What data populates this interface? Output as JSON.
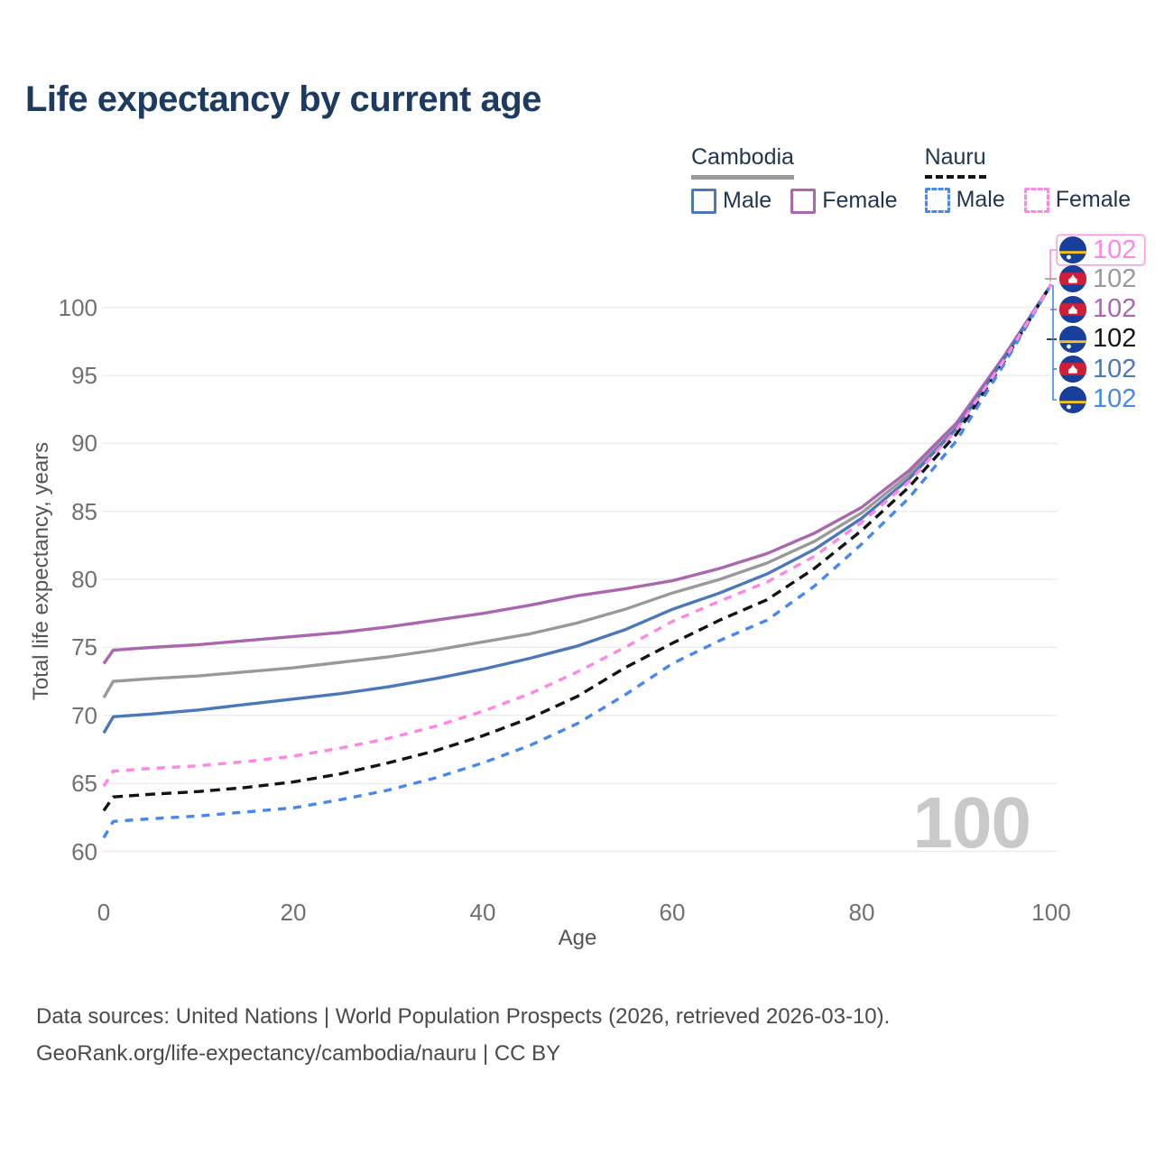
{
  "title": "Life expectancy by current age",
  "watermark": "100",
  "colors": {
    "title": "#1d3b60",
    "legend_text": "#1f3550",
    "axis_text": "#707070",
    "axis_title": "#555555",
    "grid": "#ececec",
    "watermark": "#c9c9c9",
    "footer": "#4a4a4a",
    "cambodia_male": "#4a78b8",
    "cambodia_female": "#aa66ae",
    "cambodia_all": "#999999",
    "nauru_male": "#4488f0",
    "nauru_female": "#ff85e6",
    "nauru_all": "#141414"
  },
  "legend": {
    "groups": [
      {
        "name": "Cambodia",
        "line_style": "solid",
        "items": [
          {
            "label": "Male"
          },
          {
            "label": "Female"
          }
        ]
      },
      {
        "name": "Nauru",
        "line_style": "dashed",
        "items": [
          {
            "label": "Male"
          },
          {
            "label": "Female"
          }
        ]
      }
    ]
  },
  "chart_data": {
    "type": "line",
    "title": "Life expectancy by current age",
    "xlabel": "Age",
    "ylabel": "Total life expectancy, years",
    "x_ticks": [
      0,
      20,
      40,
      60,
      80,
      100
    ],
    "y_ticks": [
      60,
      65,
      70,
      75,
      80,
      85,
      90,
      95,
      100
    ],
    "xlim": [
      0,
      100
    ],
    "ylim": [
      60,
      103
    ],
    "grid": "horizontal",
    "legend_position": "top-right",
    "x": [
      0,
      1,
      5,
      10,
      15,
      20,
      25,
      30,
      35,
      40,
      45,
      50,
      55,
      60,
      65,
      70,
      75,
      80,
      85,
      90,
      95,
      100
    ],
    "series": [
      {
        "id": "cambodia-all",
        "name": "Cambodia",
        "country": "Cambodia",
        "sex": "Both",
        "color_key": "cambodia_all",
        "dashed": false,
        "end_label": "102",
        "values": [
          71.3,
          72.5,
          72.7,
          72.9,
          73.2,
          73.5,
          73.9,
          74.3,
          74.8,
          75.4,
          76.0,
          76.8,
          77.8,
          79.0,
          80.0,
          81.2,
          82.8,
          84.9,
          87.7,
          91.3,
          96.3,
          101.7
        ]
      },
      {
        "id": "cambodia-female",
        "name": "Cambodia Female",
        "country": "Cambodia",
        "sex": "Female",
        "color_key": "cambodia_female",
        "dashed": false,
        "end_label": "102",
        "values": [
          73.8,
          74.8,
          75.0,
          75.2,
          75.5,
          75.8,
          76.1,
          76.5,
          77.0,
          77.5,
          78.1,
          78.8,
          79.3,
          79.9,
          80.8,
          81.9,
          83.4,
          85.3,
          88.0,
          91.5,
          96.4,
          101.7
        ]
      },
      {
        "id": "cambodia-male",
        "name": "Cambodia Male",
        "country": "Cambodia",
        "sex": "Male",
        "color_key": "cambodia_male",
        "dashed": false,
        "end_label": "102",
        "values": [
          68.7,
          69.9,
          70.1,
          70.4,
          70.8,
          71.2,
          71.6,
          72.1,
          72.7,
          73.4,
          74.2,
          75.1,
          76.3,
          77.8,
          79.0,
          80.4,
          82.2,
          84.5,
          87.4,
          91.1,
          96.2,
          101.7
        ]
      },
      {
        "id": "nauru-all",
        "name": "Nauru",
        "country": "Nauru",
        "sex": "Both",
        "color_key": "nauru_all",
        "dashed": true,
        "dash": "11 7",
        "end_label": "102",
        "values": [
          63.0,
          64.0,
          64.2,
          64.4,
          64.7,
          65.1,
          65.7,
          66.5,
          67.4,
          68.5,
          69.8,
          71.4,
          73.5,
          75.3,
          77.0,
          78.5,
          80.8,
          83.6,
          86.8,
          90.7,
          96.0,
          101.7
        ]
      },
      {
        "id": "nauru-male",
        "name": "Nauru Male",
        "country": "Nauru",
        "sex": "Male",
        "color_key": "nauru_male",
        "dashed": true,
        "dash": "9 8",
        "end_label": "102",
        "values": [
          61.0,
          62.2,
          62.4,
          62.6,
          62.9,
          63.2,
          63.8,
          64.5,
          65.4,
          66.5,
          67.8,
          69.4,
          71.5,
          73.8,
          75.5,
          77.0,
          79.5,
          82.6,
          86.0,
          90.2,
          95.8,
          101.7
        ]
      },
      {
        "id": "nauru-female",
        "name": "Nauru Female",
        "country": "Nauru",
        "sex": "Female",
        "color_key": "nauru_female",
        "dashed": true,
        "dash": "9 8",
        "end_label": "102",
        "values": [
          64.8,
          65.9,
          66.1,
          66.3,
          66.6,
          67.0,
          67.6,
          68.3,
          69.2,
          70.3,
          71.6,
          73.2,
          75.0,
          76.9,
          78.4,
          79.8,
          81.7,
          84.2,
          87.2,
          91.0,
          96.1,
          101.7
        ]
      }
    ]
  },
  "end_labels": [
    {
      "series_id": "nauru-female",
      "flag": "nauru",
      "color_key": "nauru_female",
      "value": "102",
      "highlighted": true
    },
    {
      "series_id": "cambodia-all",
      "flag": "cambodia",
      "color_key": "cambodia_all",
      "value": "102",
      "highlighted": false
    },
    {
      "series_id": "cambodia-female",
      "flag": "cambodia",
      "color_key": "cambodia_female",
      "value": "102",
      "highlighted": false
    },
    {
      "series_id": "nauru-all",
      "flag": "nauru",
      "color_key": "nauru_all",
      "value": "102",
      "highlighted": false
    },
    {
      "series_id": "cambodia-male",
      "flag": "cambodia",
      "color_key": "cambodia_male",
      "value": "102",
      "highlighted": false
    },
    {
      "series_id": "nauru-male",
      "flag": "nauru",
      "color_key": "nauru_male",
      "value": "102",
      "highlighted": false
    }
  ],
  "footer": {
    "line1": "Data sources: United Nations | World Population Prospects (2026, retrieved 2026-03-10).",
    "line2": "GeoRank.org/life-expectancy/cambodia/nauru | CC BY"
  }
}
